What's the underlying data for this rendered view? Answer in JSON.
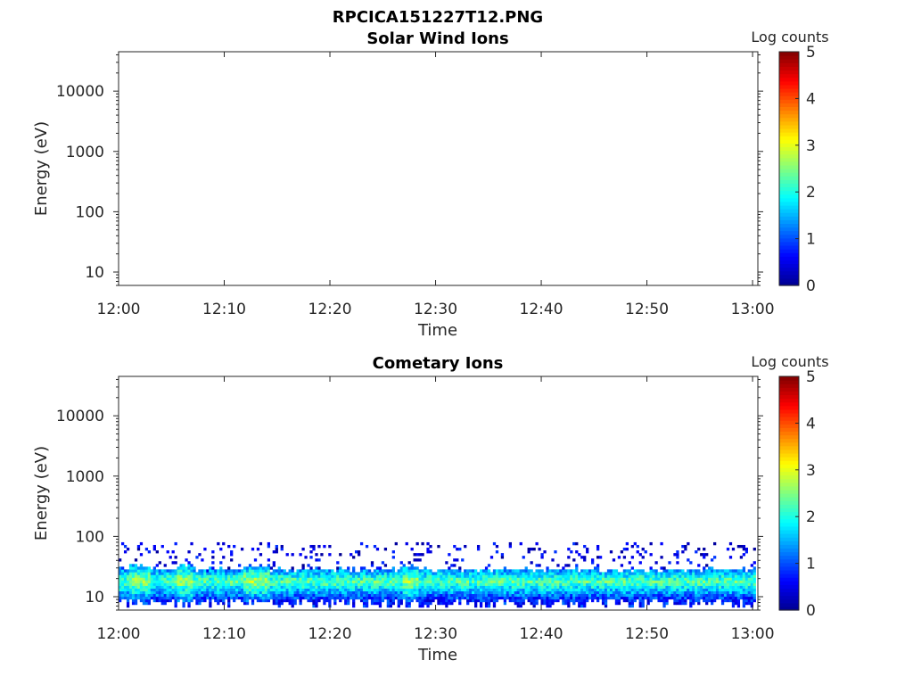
{
  "figure_title": "RPCICA151227T12.PNG",
  "colormap": [
    "#00008f",
    "#0000ff",
    "#0080ff",
    "#00ffff",
    "#80ff80",
    "#ffff00",
    "#ff8000",
    "#ff0000",
    "#800000"
  ],
  "chart_data": [
    {
      "type": "heatmap",
      "title": "Solar Wind Ions",
      "xlabel": "Time",
      "ylabel": "Energy (eV)",
      "x_tick_labels": [
        "12:00",
        "12:10",
        "12:20",
        "12:30",
        "12:40",
        "12:50",
        "13:00"
      ],
      "x_ticks_minutes": [
        0,
        10,
        20,
        30,
        40,
        50,
        60
      ],
      "xlim_minutes": [
        0,
        60.5
      ],
      "y_scale": "log",
      "y_tick_labels": [
        "10",
        "100",
        "1000",
        "10000"
      ],
      "y_ticks": [
        10,
        100,
        1000,
        10000
      ],
      "ylim": [
        6,
        45000
      ],
      "colorbar": {
        "label": "Log counts",
        "ticks": [
          "0",
          "1",
          "2",
          "3",
          "4",
          "5"
        ],
        "range": [
          0,
          5
        ]
      },
      "description": "",
      "bands": []
    },
    {
      "type": "heatmap",
      "title": "Cometary Ions",
      "xlabel": "Time",
      "ylabel": "Energy (eV)",
      "x_tick_labels": [
        "12:00",
        "12:10",
        "12:20",
        "12:30",
        "12:40",
        "12:50",
        "13:00"
      ],
      "x_ticks_minutes": [
        0,
        10,
        20,
        30,
        40,
        50,
        60
      ],
      "xlim_minutes": [
        0,
        60.5
      ],
      "y_scale": "log",
      "y_tick_labels": [
        "10",
        "100",
        "1000",
        "10000"
      ],
      "y_ticks": [
        10,
        100,
        1000,
        10000
      ],
      "ylim": [
        6,
        45000
      ],
      "colorbar": {
        "label": "Log counts",
        "ticks": [
          "0",
          "1",
          "2",
          "3",
          "4",
          "5"
        ],
        "range": [
          0,
          5
        ]
      },
      "bands": [
        {
          "energy_range_eV": [
            6,
            28
          ],
          "log_counts_range": [
            0.5,
            2.6
          ],
          "note": "continuous band across full interval, peak near 15-20 eV"
        },
        {
          "energy_range_eV": [
            28,
            80
          ],
          "log_counts_range": [
            0,
            1
          ],
          "note": "sparse scattered counts"
        }
      ]
    }
  ]
}
